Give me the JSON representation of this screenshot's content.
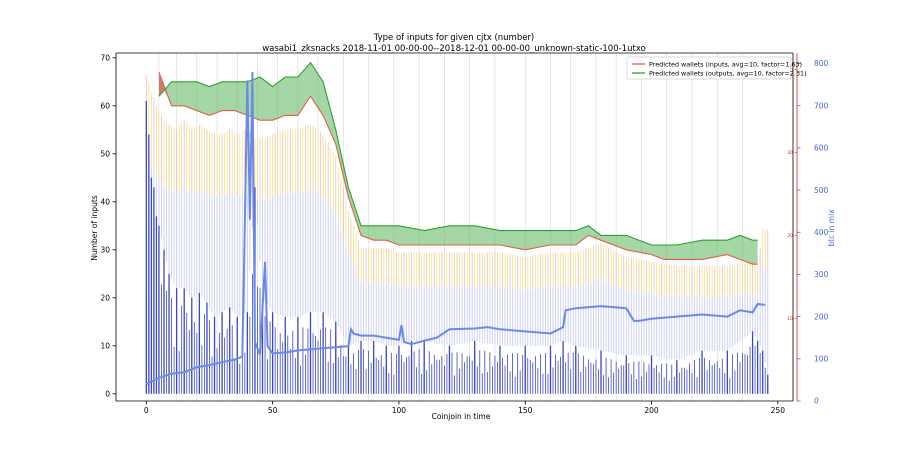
{
  "chart_data": {
    "type": "bar",
    "title_line1": "Type of inputs for given cjtx (number)",
    "title_line2": "wasabi1_zksnacks 2018-11-01 00-00-00--2018-12-01 00-00-00_unknown-static-100-1utxo",
    "xlabel": "Coinjoin in time",
    "ylabel_left": "Number of inputs",
    "ylabel_right": "btc in mix",
    "xlim": [
      -12,
      256
    ],
    "ylim_left": [
      -1.5,
      71
    ],
    "ylim_right": [
      0,
      825
    ],
    "ylim_inner": [
      0,
      42
    ],
    "grid": "vertical lines at selected coinjoins",
    "legend_position": "top-right",
    "x_ticks": [
      "0",
      "50",
      "100",
      "150",
      "200",
      "250"
    ],
    "y_ticks_left": [
      "0",
      "10",
      "20",
      "30",
      "40",
      "50",
      "60",
      "70"
    ],
    "y_ticks_right": [
      "0",
      "100",
      "200",
      "300",
      "400",
      "500",
      "600",
      "700",
      "800"
    ],
    "y_ticks_inner": [
      "10",
      "20",
      "30",
      "40"
    ],
    "legend": [
      {
        "label": "Predicted wallets (inputs, avg=10, factor=1.63)",
        "color": "#e0604a"
      },
      {
        "label": "Predicted wallets (outputs, avg=10, factor=2.31)",
        "color": "#2ca02c"
      }
    ],
    "colors": {
      "inputs_line": "#e0604a",
      "outputs_line": "#2ca02c",
      "btc_line": "#6b8ae6",
      "fresh_inputs": "#3b48c4",
      "remix_inputs": "#c9cdf5",
      "remix_yellow": "#f5dc7a",
      "remix_red": "#f4b2b2",
      "right_axis": "#4169e1",
      "inner_axis": "#d62728"
    },
    "inputs_wallets": {
      "x": [
        5,
        10,
        15,
        20,
        25,
        30,
        35,
        40,
        45,
        50,
        55,
        60,
        65,
        70,
        75,
        80,
        85,
        90,
        95,
        100,
        110,
        120,
        130,
        140,
        150,
        160,
        170,
        175,
        180,
        190,
        200,
        205,
        210,
        220,
        230,
        235,
        240,
        242
      ],
      "y": [
        67,
        60,
        60,
        59,
        58,
        59,
        59,
        58,
        57,
        57,
        58,
        58,
        62,
        58,
        52,
        41,
        33,
        32,
        32,
        31,
        31,
        31,
        31,
        31,
        30,
        31,
        31,
        33,
        32,
        30,
        29,
        28,
        28,
        28,
        29,
        28,
        27,
        27
      ]
    },
    "outputs_wallets": {
      "x": [
        5,
        10,
        15,
        20,
        25,
        30,
        35,
        40,
        45,
        50,
        55,
        60,
        65,
        70,
        75,
        80,
        85,
        90,
        95,
        100,
        110,
        120,
        130,
        140,
        150,
        160,
        170,
        175,
        180,
        190,
        200,
        205,
        210,
        220,
        230,
        235,
        240,
        242
      ],
      "y": [
        62,
        65,
        65,
        65,
        64,
        65,
        65,
        65,
        66,
        64,
        66,
        66,
        69,
        65,
        55,
        43,
        35,
        35,
        35,
        35,
        34,
        35,
        35,
        34,
        34,
        34,
        34,
        35,
        33,
        33,
        31,
        31,
        31,
        32,
        32,
        33,
        32,
        32
      ]
    },
    "btc_in_mix": {
      "x": [
        0,
        5,
        10,
        15,
        20,
        25,
        30,
        35,
        38,
        39,
        40,
        41,
        42,
        43,
        45,
        47,
        48,
        50,
        55,
        60,
        70,
        80,
        81,
        82,
        85,
        90,
        100,
        101,
        102,
        105,
        110,
        115,
        120,
        130,
        135,
        140,
        150,
        160,
        165,
        166,
        170,
        180,
        190,
        193,
        195,
        200,
        210,
        220,
        230,
        235,
        240,
        242,
        245
      ],
      "y": [
        40,
        55,
        65,
        68,
        80,
        85,
        92,
        98,
        105,
        420,
        760,
        430,
        780,
        140,
        110,
        330,
        130,
        113,
        115,
        120,
        125,
        130,
        170,
        160,
        155,
        155,
        145,
        180,
        140,
        135,
        143,
        150,
        170,
        172,
        175,
        170,
        165,
        160,
        175,
        215,
        220,
        225,
        220,
        190,
        190,
        195,
        200,
        205,
        200,
        215,
        210,
        230,
        228
      ]
    },
    "bars": {
      "x": [
        0,
        1,
        2,
        3,
        4,
        5,
        7,
        9,
        12,
        15,
        18,
        21,
        24,
        27,
        30,
        33,
        36,
        40,
        43,
        46,
        50,
        55,
        60,
        65,
        70,
        75,
        80,
        85,
        90,
        95,
        100,
        105,
        110,
        120,
        130,
        140,
        150,
        160,
        165,
        170,
        180,
        190,
        200,
        210,
        220,
        230,
        240,
        242,
        244,
        246
      ],
      "fresh": [
        61,
        54,
        45,
        43,
        37,
        35,
        30,
        25,
        22,
        22,
        20,
        21,
        19,
        16,
        17,
        18,
        16,
        17,
        43,
        20,
        17,
        16,
        16,
        17,
        17,
        15,
        10,
        11,
        11,
        10,
        10,
        11,
        11,
        10,
        11,
        10,
        10,
        10,
        11,
        10,
        9,
        8,
        8,
        7,
        9,
        9,
        13,
        11,
        9,
        4
      ],
      "total": [
        70,
        68,
        66,
        65,
        63,
        62,
        60,
        59,
        58,
        60,
        58,
        59,
        58,
        57,
        57,
        58,
        57,
        58,
        56,
        56,
        57,
        58,
        58,
        59,
        57,
        52,
        40,
        32,
        32,
        32,
        31,
        31,
        31,
        31,
        31,
        31,
        30,
        31,
        31,
        31,
        33,
        30,
        29,
        28,
        28,
        28,
        29,
        28,
        36,
        36
      ]
    },
    "vertical_grid_x": [
      5,
      12,
      20,
      28,
      36,
      44,
      52,
      60,
      68,
      78,
      88,
      98,
      108,
      118,
      128,
      138,
      150,
      160,
      168,
      178,
      186,
      196,
      206,
      216,
      226,
      236
    ]
  }
}
